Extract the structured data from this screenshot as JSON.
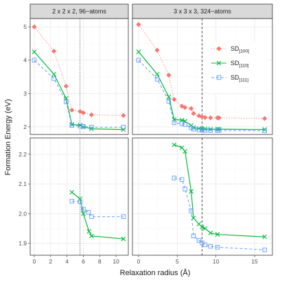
{
  "chart_data": {
    "type": "line",
    "xlabel": "Relaxation radius (Å)",
    "ylabel": "Formation Energy (eV)",
    "facet_columns": [
      {
        "label": "2 x 2 x 2,  96−atoms",
        "xlim": [
          -0.5,
          11.5
        ],
        "xticks": [
          0,
          2,
          4,
          6,
          8,
          10
        ],
        "vline": {
          "x": 5.6,
          "style": "dotted"
        }
      },
      {
        "label": "3 x 3 x 3,  324−atoms",
        "xlim": [
          -0.8,
          17.3
        ],
        "xticks": [
          0,
          5,
          10,
          15
        ],
        "vline": {
          "x": 8.2,
          "style": "dashed"
        }
      }
    ],
    "facet_rows": [
      {
        "ylim": [
          1.77,
          5.25
        ],
        "yticks": [
          2,
          3,
          4,
          5
        ]
      },
      {
        "ylim": [
          1.86,
          2.255
        ],
        "yticks": [
          1.9,
          2.0,
          2.1,
          2.2
        ]
      }
    ],
    "legend": {
      "position": "top-right",
      "items": [
        {
          "main": "SD",
          "sub": "[100]",
          "series": "sd100"
        },
        {
          "main": "SD",
          "sub": "[110]",
          "series": "sd110"
        },
        {
          "main": "SD",
          "sub": "[111]",
          "series": "sd111"
        }
      ]
    },
    "series": [
      {
        "key": "sd100",
        "color": "#f8766d",
        "marker": "diamond",
        "dash": "dotted"
      },
      {
        "key": "sd110",
        "color": "#00ba38",
        "marker": "cross",
        "dash": "solid"
      },
      {
        "key": "sd111",
        "color": "#619cff",
        "marker": "square",
        "dash": "dashed"
      }
    ],
    "panels": [
      {
        "row": 0,
        "col": 0,
        "series": {
          "sd100": {
            "x": [
              0,
              2.4,
              3.9,
              4.6,
              5.6,
              6.0,
              7.0,
              10.9
            ],
            "y": [
              5.0,
              4.27,
              3.22,
              2.5,
              2.46,
              2.42,
              2.36,
              2.34
            ]
          },
          "sd110": {
            "x": [
              0,
              2.4,
              3.9,
              4.6,
              5.6,
              6.0,
              7.0,
              10.9
            ],
            "y": [
              4.25,
              3.58,
              2.85,
              2.07,
              2.05,
              2.0,
              1.94,
              1.92
            ]
          },
          "sd111": {
            "x": [
              0,
              2.4,
              3.9,
              4.6,
              5.6,
              6.0,
              7.0,
              10.9
            ],
            "y": [
              4.0,
              3.45,
              2.75,
              2.04,
              2.02,
              2.01,
              1.99,
              1.99
            ]
          }
        }
      },
      {
        "row": 0,
        "col": 1,
        "series": {
          "sd100": {
            "x": [
              0,
              2.4,
              3.9,
              4.6,
              5.6,
              6.0,
              6.8,
              7.1,
              7.8,
              8.2,
              8.6,
              9.3,
              10.2,
              10.4,
              16.3
            ],
            "y": [
              5.07,
              4.3,
              3.55,
              2.82,
              2.62,
              2.58,
              2.55,
              2.4,
              2.33,
              2.3,
              2.28,
              2.27,
              2.27,
              2.27,
              2.25
            ]
          },
          "sd110": {
            "x": [
              0,
              2.4,
              3.9,
              4.6,
              5.6,
              6.0,
              6.8,
              7.1,
              7.8,
              8.2,
              8.6,
              9.3,
              10.2,
              10.4,
              16.3
            ],
            "y": [
              4.25,
              3.58,
              2.9,
              2.22,
              2.2,
              2.17,
              2.04,
              1.98,
              1.95,
              1.94,
              1.94,
              1.93,
              1.93,
              1.93,
              1.92
            ]
          },
          "sd111": {
            "x": [
              0,
              2.4,
              3.9,
              4.6,
              5.6,
              6.0,
              6.8,
              7.1,
              7.8,
              8.2,
              8.6,
              9.3,
              10.2,
              10.4,
              16.3
            ],
            "y": [
              4.0,
              3.43,
              2.77,
              2.12,
              2.1,
              2.07,
              1.97,
              1.93,
              1.91,
              1.9,
              1.89,
              1.89,
              1.89,
              1.89,
              1.88
            ]
          }
        }
      },
      {
        "row": 1,
        "col": 0,
        "series": {
          "sd110": {
            "x": [
              4.6,
              5.6,
              6.0,
              6.7,
              7.0,
              10.9
            ],
            "y": [
              2.072,
              2.05,
              2.0,
              1.94,
              1.925,
              1.915
            ]
          },
          "sd111": {
            "x": [
              4.6,
              5.6,
              6.0,
              6.6,
              7.0,
              10.9
            ],
            "y": [
              2.042,
              2.04,
              2.015,
              2.005,
              1.99,
              1.99
            ]
          }
        }
      },
      {
        "row": 1,
        "col": 1,
        "series": {
          "sd110": {
            "x": [
              4.6,
              5.6,
              6.0,
              6.8,
              7.1,
              7.8,
              8.2,
              8.6,
              9.3,
              10.2,
              16.3
            ],
            "y": [
              2.232,
              2.222,
              2.21,
              2.075,
              1.985,
              1.965,
              1.955,
              1.95,
              1.935,
              1.93,
              1.922
            ]
          },
          "sd111": {
            "x": [
              4.6,
              5.6,
              6.0,
              6.8,
              7.1,
              7.8,
              8.2,
              8.6,
              9.3,
              10.2,
              16.3
            ],
            "y": [
              2.12,
              2.115,
              2.083,
              2.01,
              1.925,
              1.91,
              1.902,
              1.895,
              1.89,
              1.887,
              1.878
            ]
          }
        }
      }
    ]
  }
}
